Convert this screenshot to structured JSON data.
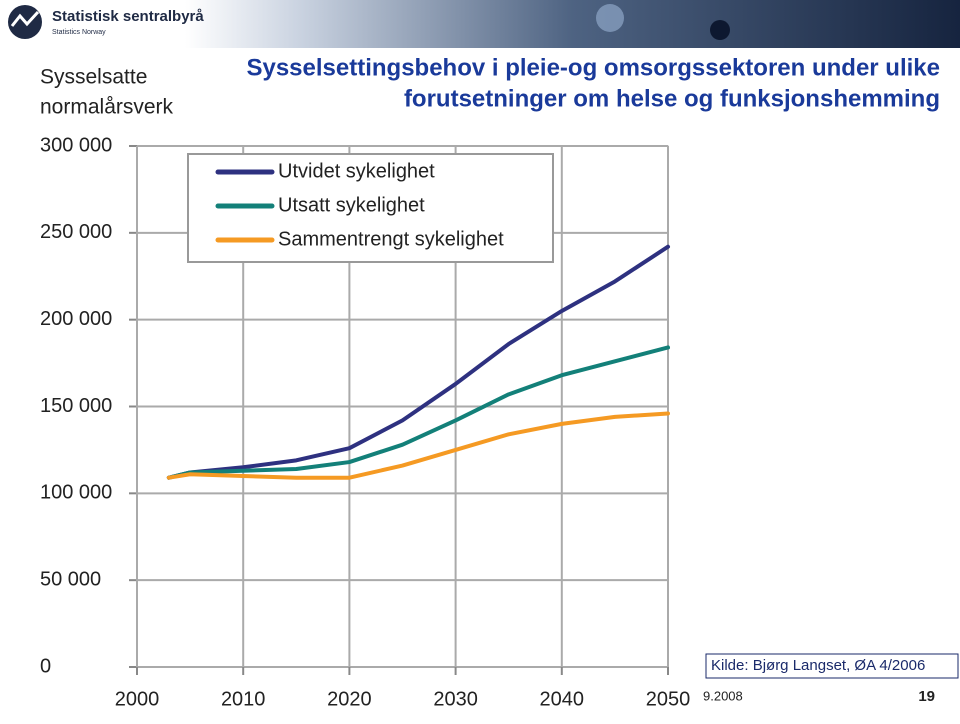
{
  "slide": {
    "logo": "Statistisk sentralbyrå",
    "logo_subtitle": "Statistics Norway",
    "source": "Kilde: Bjørg Langset, ØA 4/2006",
    "date": "9.2008",
    "page": "19"
  },
  "chart_data": {
    "type": "line",
    "title": [
      "Sysselsettingsbehov i pleie-og omsorgssektoren under ulike",
      "forutsetninger om helse og funksjonshemming"
    ],
    "y_label": [
      "Sysselsatte",
      "normalårsverk"
    ],
    "x": [
      2003,
      2005,
      2010,
      2015,
      2020,
      2025,
      2030,
      2035,
      2040,
      2045,
      2050
    ],
    "series": [
      {
        "name": "Utvidet sykelighet",
        "color": "#2e3180",
        "values": [
          109000,
          112000,
          115000,
          119000,
          126000,
          142000,
          163000,
          186000,
          205000,
          222000,
          242000
        ]
      },
      {
        "name": "Utsatt sykelighet",
        "color": "#138079",
        "values": [
          109000,
          112000,
          113000,
          114000,
          118000,
          128000,
          142000,
          157000,
          168000,
          176000,
          184000
        ]
      },
      {
        "name": "Sammentrengt sykelighet",
        "color": "#f59a23",
        "values": [
          109000,
          111000,
          110000,
          109000,
          109000,
          116000,
          125000,
          134000,
          140000,
          144000,
          146000
        ]
      }
    ],
    "xlim": [
      2000,
      2050
    ],
    "xticks": [
      2000,
      2010,
      2020,
      2030,
      2040,
      2050
    ],
    "ylim": [
      0,
      300000
    ],
    "yticks": [
      {
        "value": 0,
        "label": "0"
      },
      {
        "value": 50000,
        "label": "50 000"
      },
      {
        "value": 100000,
        "label": "100 000"
      },
      {
        "value": 150000,
        "label": "150 000"
      },
      {
        "value": 200000,
        "label": "200 000"
      },
      {
        "value": 250000,
        "label": "250 000"
      },
      {
        "value": 300000,
        "label": "300 000"
      }
    ],
    "grid": true
  }
}
